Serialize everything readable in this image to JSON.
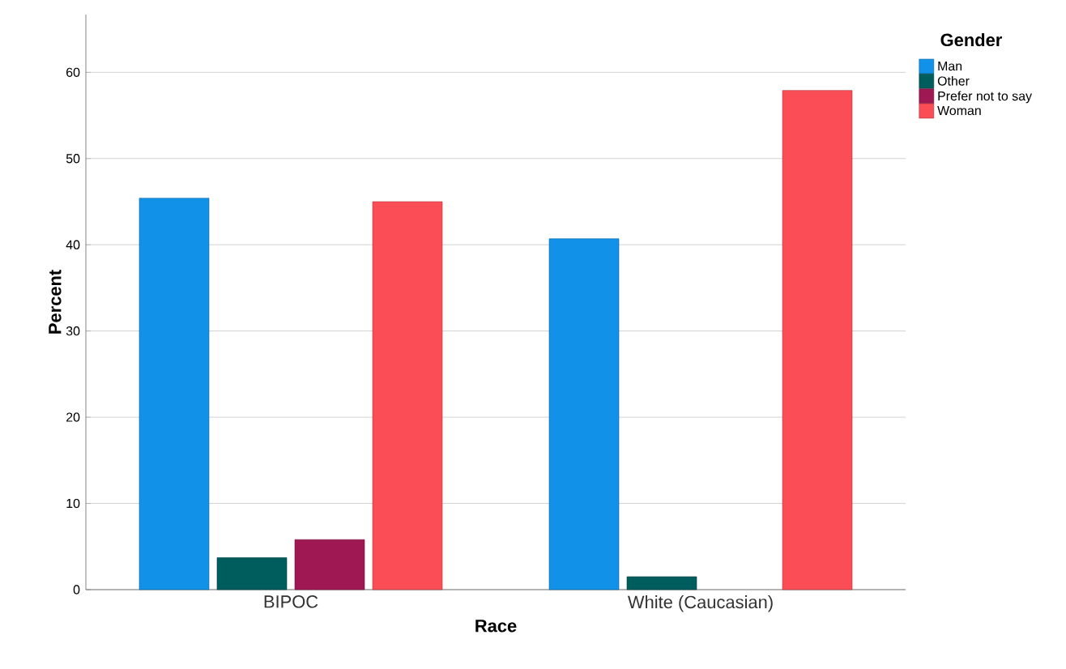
{
  "chart_data": {
    "type": "bar",
    "xlabel": "Race",
    "ylabel": "Percent",
    "legend_title": "Gender",
    "categories": [
      "BIPOC",
      "White (Caucasian)"
    ],
    "series": [
      {
        "name": "Man",
        "color": "#1192e8",
        "values": [
          45.4,
          40.7
        ]
      },
      {
        "name": "Other",
        "color": "#005d5d",
        "values": [
          3.7,
          1.5
        ]
      },
      {
        "name": "Prefer not to say",
        "color": "#9f1853",
        "values": [
          5.8,
          null
        ]
      },
      {
        "name": "Woman",
        "color": "#fa4d56",
        "values": [
          45.0,
          57.9
        ]
      }
    ],
    "ylim": [
      0,
      66.7
    ],
    "yticks": [
      0,
      10,
      20,
      30,
      40,
      50,
      60
    ],
    "grid": "y",
    "legend": "top right"
  }
}
